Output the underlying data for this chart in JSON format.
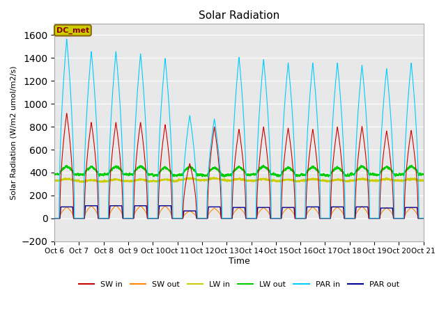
{
  "title": "Solar Radiation",
  "ylabel": "Solar Radiation (W/m2 umol/m2/s)",
  "xlabel": "Time",
  "ylim": [
    -200,
    1700
  ],
  "yticks": [
    -200,
    0,
    200,
    400,
    600,
    800,
    1000,
    1200,
    1400,
    1600
  ],
  "bg_color": "#e8e8e8",
  "fig_color": "#ffffff",
  "series_colors": {
    "SW in": "#cc0000",
    "SW out": "#ff8800",
    "LW in": "#cccc00",
    "LW out": "#00cc00",
    "PAR in": "#00ccff",
    "PAR out": "#000099"
  },
  "dc_met_label": "DC_met",
  "dc_met_bg": "#cccc00",
  "dc_met_border": "#8b6914",
  "dc_met_text_color": "#880000",
  "n_days": 15,
  "pts_per_day": 288,
  "start_day": 6,
  "xtick_labels": [
    "Oct 6",
    "Oct 7",
    "Oct 8",
    "Oct 9",
    "Oct 10",
    "Oct 11",
    "Oct 12",
    "Oct 13",
    "Oct 14",
    "Oct 15",
    "Oct 16",
    "Oct 17",
    "Oct 18",
    "Oct 19",
    "Oct 20",
    "Oct 21"
  ],
  "par_peaks": [
    1570,
    1460,
    1460,
    1440,
    1400,
    900,
    870,
    1410,
    1390,
    1360,
    1360,
    1360,
    1340,
    1310,
    1360
  ],
  "sw_peaks": [
    920,
    840,
    840,
    840,
    820,
    480,
    800,
    780,
    800,
    790,
    780,
    800,
    805,
    765,
    770
  ],
  "sw_out_peaks": [
    100,
    110,
    115,
    110,
    110,
    65,
    90,
    95,
    95,
    95,
    100,
    100,
    105,
    95,
    95
  ],
  "par_out_peaks": [
    100,
    110,
    110,
    110,
    110,
    65,
    100,
    95,
    95,
    95,
    100,
    100,
    100,
    90,
    95
  ],
  "lw_in_base": [
    330,
    320,
    325,
    325,
    325,
    335,
    335,
    330,
    330,
    325,
    330,
    325,
    330,
    330,
    330
  ],
  "lw_out_base": [
    385,
    380,
    385,
    385,
    375,
    380,
    375,
    380,
    385,
    375,
    380,
    375,
    385,
    380,
    385
  ]
}
